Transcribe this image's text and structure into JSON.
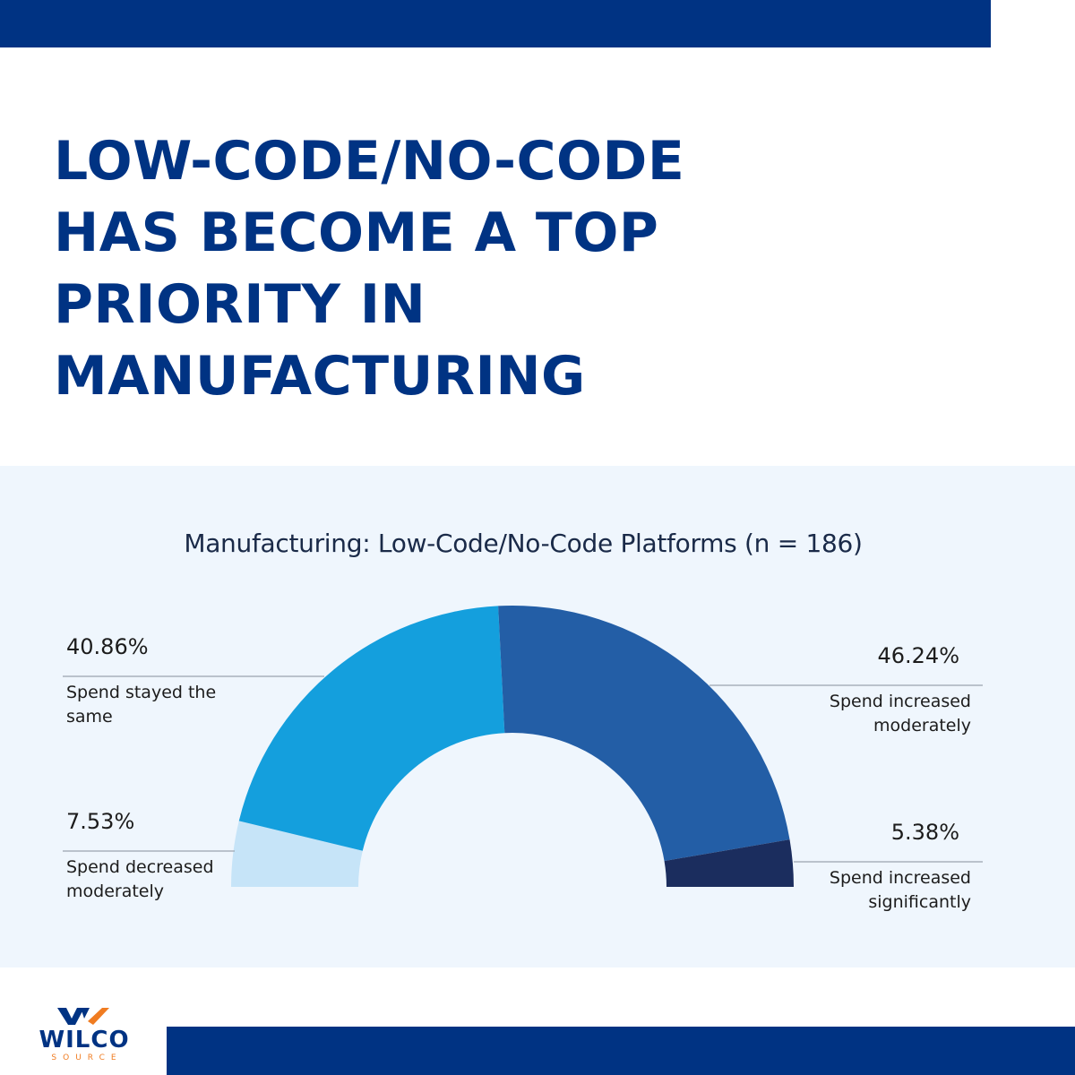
{
  "headline": {
    "lines": [
      "LOW-CODE/NO-CODE",
      "HAS BECOME A TOP",
      "PRIORITY IN",
      "MANUFACTURING"
    ]
  },
  "colors": {
    "brand_navy": "#003383",
    "panel_bg": "#eff6fd",
    "accent_orange": "#f07c21"
  },
  "chart_data": {
    "type": "pie",
    "subtype": "half-donut",
    "title": "Manufacturing: Low-Code/No-Code Platforms (n = 186)",
    "series": [
      {
        "value": 7.53,
        "value_label": "7.53%",
        "label_lines": [
          "Spend decreased",
          "moderately"
        ],
        "color": "#c6e4f8"
      },
      {
        "value": 40.86,
        "value_label": "40.86%",
        "label_lines": [
          "Spend stayed the",
          "same"
        ],
        "color": "#149fdd"
      },
      {
        "value": 46.24,
        "value_label": "46.24%",
        "label_lines": [
          "Spend increased",
          "moderately"
        ],
        "color": "#235ea6"
      },
      {
        "value": 5.38,
        "value_label": "5.38%",
        "label_lines": [
          "Spend increased",
          "significantly"
        ],
        "color": "#1b2d5e"
      }
    ]
  },
  "logo": {
    "word": "WILCO",
    "sub": "SOURCE"
  }
}
